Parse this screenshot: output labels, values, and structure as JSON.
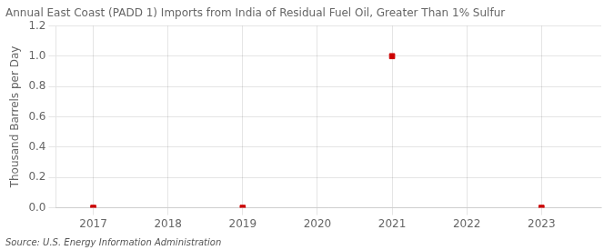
{
  "chart_data": {
    "type": "scatter",
    "title": "Annual East Coast (PADD 1) Imports from India of Residual Fuel Oil, Greater Than 1% Sulfur",
    "ylabel": "Thousand Barrels per Day",
    "source": "Source: U.S. Energy Information Administration",
    "x": [
      2017,
      2019,
      2021,
      2023
    ],
    "values": [
      0.0,
      0.0,
      1.0,
      0.0
    ],
    "color": "#cc0000",
    "marker": "square",
    "xlim": [
      2016.5,
      2023.8
    ],
    "ylim": [
      0.0,
      1.2
    ],
    "xticks": [
      2017,
      2018,
      2019,
      2020,
      2021,
      2022,
      2023
    ],
    "yticks": [
      {
        "value": 0.0,
        "label": "0.0"
      },
      0.2,
      0.4,
      0.6,
      0.8,
      {
        "value": 1.0,
        "label": "1.0"
      },
      1.2
    ],
    "grid": true
  }
}
